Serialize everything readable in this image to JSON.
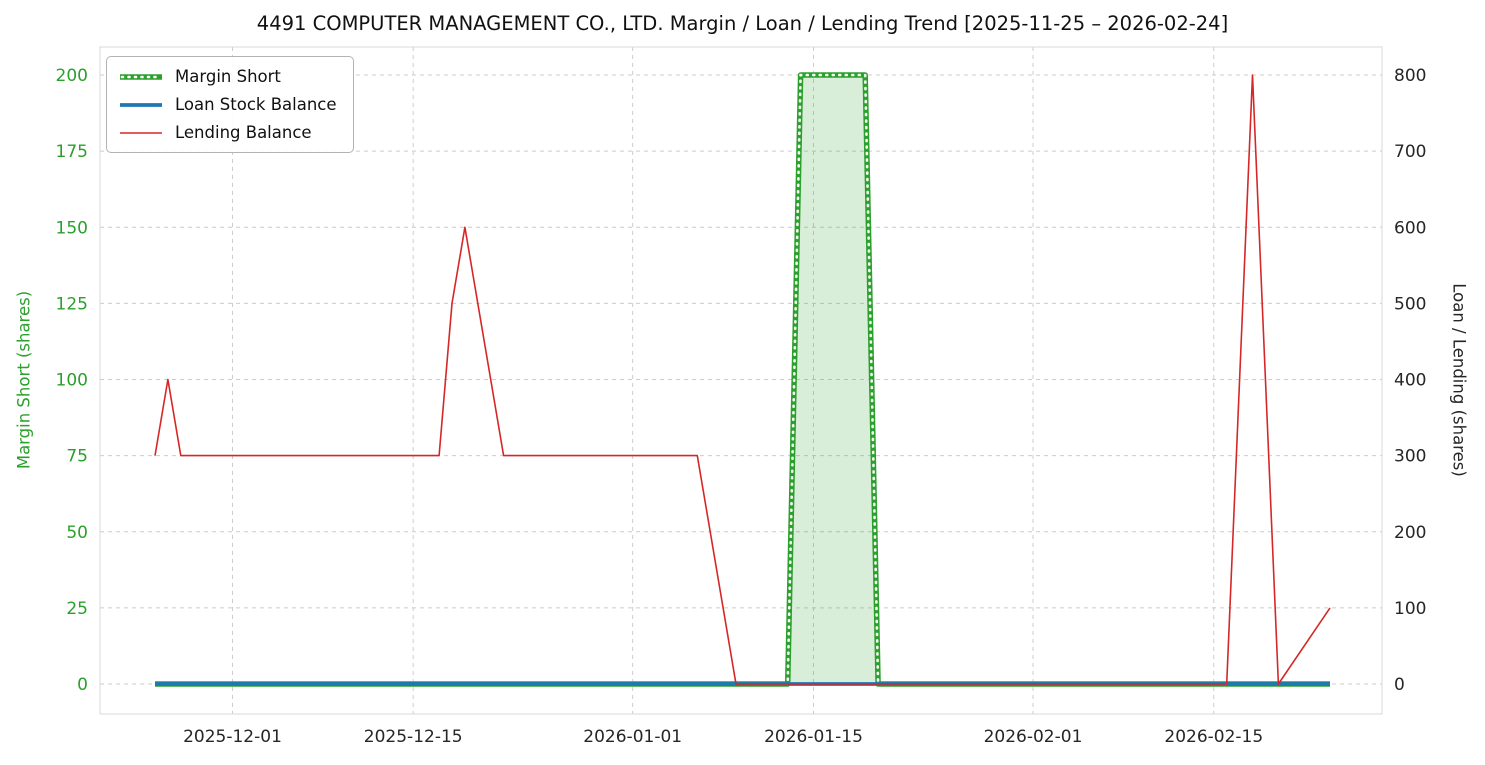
{
  "chart_data": {
    "type": "line",
    "title": "4491 COMPUTER MANAGEMENT CO., LTD. Margin / Loan / Lending Trend [2025-11-25 – 2026-02-24]",
    "date_range": {
      "start": "2025-11-25",
      "end": "2026-02-24"
    },
    "x_ticks": [
      "2025-12-01",
      "2025-12-15",
      "2026-01-01",
      "2026-01-15",
      "2026-02-01",
      "2026-02-15"
    ],
    "left_axis": {
      "label": "Margin Short (shares)",
      "color": "#2ca02c",
      "range": [
        0,
        200
      ],
      "ticks": [
        0,
        25,
        50,
        75,
        100,
        125,
        150,
        175,
        200
      ]
    },
    "right_axis": {
      "label": "Loan / Lending (shares)",
      "color": "#262626",
      "range": [
        0,
        800
      ],
      "ticks": [
        0,
        100,
        200,
        300,
        400,
        500,
        600,
        700,
        800
      ]
    },
    "grid": {
      "show": true,
      "color": "#cccccc",
      "dash": "4 4"
    },
    "legend": {
      "position": "upper-left",
      "items": [
        "Margin Short",
        "Loan Stock Balance",
        "Lending Balance"
      ]
    },
    "series": [
      {
        "name": "Margin Short",
        "axis": "left",
        "color": "#2ca02c",
        "line_width": 5.5,
        "line_style": "thick-dotted",
        "fill": true,
        "fill_opacity": 0.18,
        "points": [
          [
            "2025-11-25",
            0
          ],
          [
            "2026-01-13",
            0
          ],
          [
            "2026-01-14",
            200
          ],
          [
            "2026-01-19",
            200
          ],
          [
            "2026-01-20",
            0
          ],
          [
            "2026-02-24",
            0
          ]
        ]
      },
      {
        "name": "Loan Stock Balance",
        "axis": "right",
        "color": "#1f77b4",
        "line_width": 3.8,
        "line_style": "solid",
        "fill": false,
        "points": [
          [
            "2025-11-25",
            0
          ],
          [
            "2026-02-24",
            0
          ]
        ]
      },
      {
        "name": "Lending Balance",
        "axis": "right",
        "color": "#d62728",
        "line_width": 1.6,
        "line_style": "solid",
        "fill": false,
        "points": [
          [
            "2025-11-25",
            300
          ],
          [
            "2025-11-26",
            400
          ],
          [
            "2025-11-27",
            300
          ],
          [
            "2025-12-17",
            300
          ],
          [
            "2025-12-18",
            500
          ],
          [
            "2025-12-19",
            600
          ],
          [
            "2025-12-22",
            300
          ],
          [
            "2026-01-06",
            300
          ],
          [
            "2026-01-09",
            0
          ],
          [
            "2026-02-16",
            0
          ],
          [
            "2026-02-18",
            800
          ],
          [
            "2026-02-20",
            0
          ],
          [
            "2026-02-24",
            100
          ]
        ]
      }
    ]
  }
}
